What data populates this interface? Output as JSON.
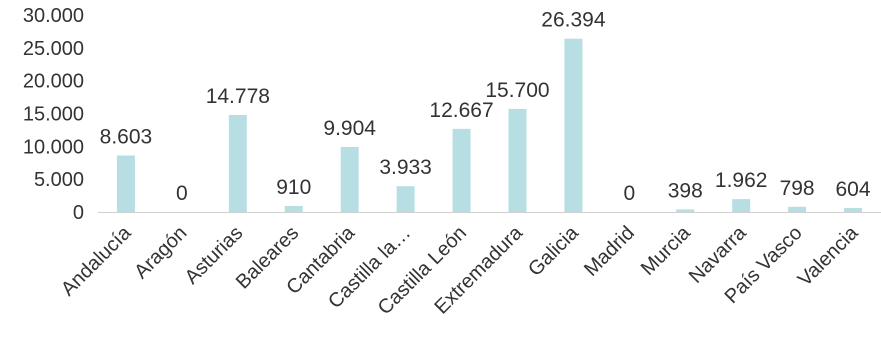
{
  "chart_data": {
    "type": "bar",
    "categories": [
      "Andalucía",
      "Aragón",
      "Asturias",
      "Baleares",
      "Cantabria",
      "Castilla la…",
      "Castilla León",
      "Extremadura",
      "Galicia",
      "Madrid",
      "Murcia",
      "Navarra",
      "País Vasco",
      "Valencia"
    ],
    "values": [
      8603,
      0,
      14778,
      910,
      9904,
      3933,
      12667,
      15700,
      26394,
      0,
      398,
      1962,
      798,
      604
    ],
    "data_labels": [
      "8.603",
      "0",
      "14.778",
      "910",
      "9.904",
      "3.933",
      "12.667",
      "15.700",
      "26.394",
      "0",
      "398",
      "1.962",
      "798",
      "604"
    ],
    "yticks": [
      0,
      5000,
      10000,
      15000,
      20000,
      25000,
      30000
    ],
    "ytick_labels": [
      "0",
      "5.000",
      "10.000",
      "15.000",
      "20.000",
      "25.000",
      "30.000"
    ],
    "ylim": [
      0,
      30000
    ],
    "grid": false,
    "legend": "none",
    "title": "",
    "xlabel": "",
    "ylabel": "",
    "colors": {
      "bar": "#b7dfe3",
      "axis": "#d0d0d0",
      "text": "#333333"
    }
  }
}
